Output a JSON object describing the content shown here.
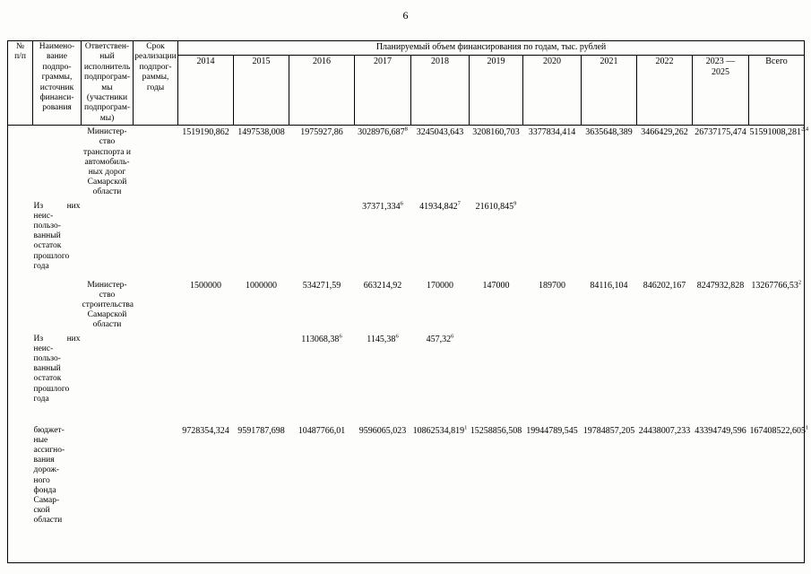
{
  "page": {
    "number": "6"
  },
  "table": {
    "header": {
      "num": "№\nп/п",
      "name": "Наимено-\nвание\nподпро-\nграммы,\nисточник\nфинанси-\nрования",
      "executor": "Ответствен-\nный\nисполнитель\nподпрограм-\nмы\n(участники\nподпрограм-\nмы)",
      "term": "Срок\nреализации\nподпрог-\nраммы,\nгоды",
      "finance_title": "Планируемый объем финансирования по годам, тыс. рублей",
      "years": [
        "2014",
        "2015",
        "2016",
        "2017",
        "2018",
        "2019",
        "2020",
        "2021",
        "2022",
        "2023 —\n2025",
        "Всего"
      ]
    },
    "rows": [
      {
        "num": "",
        "name": "",
        "executor": "Министер-\nство\nтранспорта и\nавтомобиль-\nных дорог\nСамарской\nобласти",
        "term": "",
        "cells": [
          {
            "v": "1519190,862",
            "sup": ""
          },
          {
            "v": "1497538,008",
            "sup": ""
          },
          {
            "v": "1975927,86",
            "sup": ""
          },
          {
            "v": "3028976,687",
            "sup": "8"
          },
          {
            "v": "3245043,643",
            "sup": ""
          },
          {
            "v": "3208160,703",
            "sup": ""
          },
          {
            "v": "3377834,414",
            "sup": ""
          },
          {
            "v": "3635648,389",
            "sup": ""
          },
          {
            "v": "3466429,262",
            "sup": ""
          },
          {
            "v": "26737175,474",
            "sup": ""
          },
          {
            "v": "51591008,281",
            "sup": "2,4"
          }
        ]
      },
      {
        "num": "",
        "name": "Из них\nнеис-\nпользо-\nванный\nостаток\nпрошлого\nгода",
        "executor": "",
        "term": "",
        "cells": [
          {
            "v": "",
            "sup": ""
          },
          {
            "v": "",
            "sup": ""
          },
          {
            "v": "",
            "sup": ""
          },
          {
            "v": "37371,334",
            "sup": "6"
          },
          {
            "v": "41934,842",
            "sup": "7"
          },
          {
            "v": "21610,845",
            "sup": "9"
          },
          {
            "v": "",
            "sup": ""
          },
          {
            "v": "",
            "sup": ""
          },
          {
            "v": "",
            "sup": ""
          },
          {
            "v": "",
            "sup": ""
          },
          {
            "v": "",
            "sup": ""
          }
        ]
      },
      {
        "num": "",
        "name": "",
        "executor": "Министер-\nство\nстроительства\nСамарской\nобласти",
        "term": "",
        "cells": [
          {
            "v": "1500000",
            "sup": ""
          },
          {
            "v": "1000000",
            "sup": ""
          },
          {
            "v": "534271,59",
            "sup": ""
          },
          {
            "v": "663214,92",
            "sup": ""
          },
          {
            "v": "170000",
            "sup": ""
          },
          {
            "v": "147000",
            "sup": ""
          },
          {
            "v": "189700",
            "sup": ""
          },
          {
            "v": "84116,104",
            "sup": ""
          },
          {
            "v": "846202,167",
            "sup": ""
          },
          {
            "v": "8247932,828",
            "sup": ""
          },
          {
            "v": "13267766,53",
            "sup": "2"
          }
        ]
      },
      {
        "num": "",
        "name": "Из них\nнеис-\nпользо-\nванный\nостаток\nпрошлого\nгода",
        "executor": "",
        "term": "",
        "cells": [
          {
            "v": "",
            "sup": ""
          },
          {
            "v": "",
            "sup": ""
          },
          {
            "v": "113068,38",
            "sup": "6"
          },
          {
            "v": "1145,38",
            "sup": "6"
          },
          {
            "v": "457,32",
            "sup": "6"
          },
          {
            "v": "",
            "sup": ""
          },
          {
            "v": "",
            "sup": ""
          },
          {
            "v": "",
            "sup": ""
          },
          {
            "v": "",
            "sup": ""
          },
          {
            "v": "",
            "sup": ""
          },
          {
            "v": "",
            "sup": ""
          }
        ]
      },
      {
        "num": "",
        "name": "бюджет-\nные\nассигно-\nвания\nдорож-\nного\nфонда\nСамар-\nской\nобласти",
        "executor": "",
        "term": "",
        "cells": [
          {
            "v": "9728354,324",
            "sup": ""
          },
          {
            "v": "9591787,698",
            "sup": ""
          },
          {
            "v": "10487766,01",
            "sup": ""
          },
          {
            "v": "9596065,023",
            "sup": ""
          },
          {
            "v": "10862534,819",
            "sup": "1"
          },
          {
            "v": "15258856,508",
            "sup": ""
          },
          {
            "v": "19944789,545",
            "sup": ""
          },
          {
            "v": "19784857,205",
            "sup": ""
          },
          {
            "v": "24438007,233",
            "sup": ""
          },
          {
            "v": "43394749,596",
            "sup": ""
          },
          {
            "v": "167408522,605",
            "sup": "1"
          }
        ]
      }
    ]
  }
}
